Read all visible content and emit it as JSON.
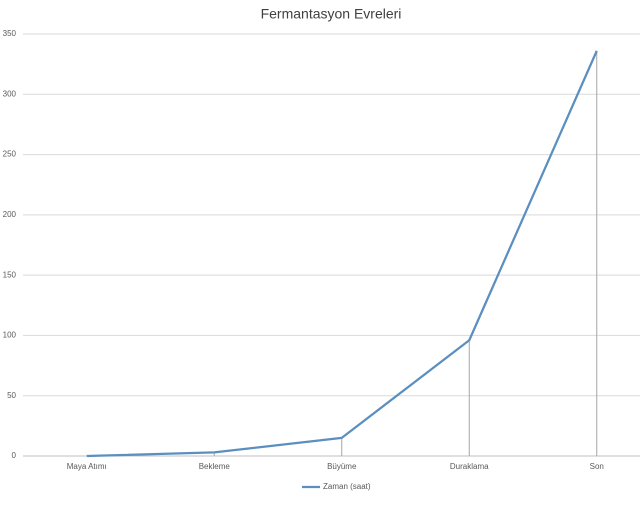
{
  "chart_data": {
    "type": "line",
    "title": "Fermantasyon Evreleri",
    "categories": [
      "Maya Atımı",
      "Bekleme",
      "Büyüme",
      "Duraklama",
      "Son"
    ],
    "series": [
      {
        "name": "Zaman (saat)",
        "color": "#5b8fc0",
        "values": [
          0,
          3,
          15,
          96,
          336
        ]
      }
    ],
    "ylim": [
      0,
      350
    ],
    "yticks": [
      0,
      50,
      100,
      150,
      200,
      250,
      300,
      350
    ],
    "grid": true,
    "drop_lines": true,
    "legend": "bottom"
  }
}
